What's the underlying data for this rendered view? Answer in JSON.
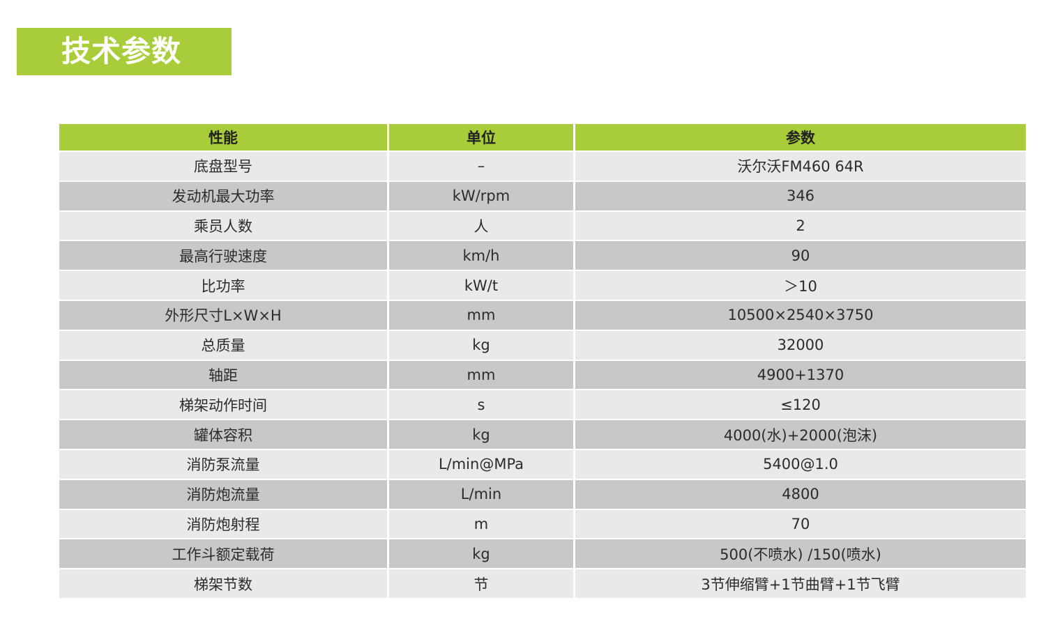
{
  "title": "技术参数",
  "colors": {
    "accent": "#a9cd3a",
    "row_light": "#e9e9eb",
    "row_dark": "#c8c8c8"
  },
  "table": {
    "headers": [
      "性能",
      "单位",
      "参数"
    ],
    "rows": [
      [
        "底盘型号",
        "–",
        "沃尔沃FM460 64R"
      ],
      [
        "发动机最大功率",
        "kW/rpm",
        "346"
      ],
      [
        "乘员人数",
        "人",
        "2"
      ],
      [
        "最高行驶速度",
        "km/h",
        "90"
      ],
      [
        "比功率",
        "kW/t",
        "＞10"
      ],
      [
        "外形尺寸L×W×H",
        "mm",
        "10500×2540×3750"
      ],
      [
        "总质量",
        "kg",
        "32000"
      ],
      [
        "轴距",
        "mm",
        "4900+1370"
      ],
      [
        "梯架动作时间",
        "s",
        "≤120"
      ],
      [
        "罐体容积",
        "kg",
        "4000(水)+2000(泡沫)"
      ],
      [
        "消防泵流量",
        "L/min@MPa",
        "5400@1.0"
      ],
      [
        "消防炮流量",
        "L/min",
        "4800"
      ],
      [
        "消防炮射程",
        "m",
        "70"
      ],
      [
        "工作斗额定载荷",
        "kg",
        "500(不喷水) /150(喷水)"
      ],
      [
        "梯架节数",
        "节",
        "3节伸缩臂+1节曲臂+1节飞臂"
      ]
    ]
  }
}
